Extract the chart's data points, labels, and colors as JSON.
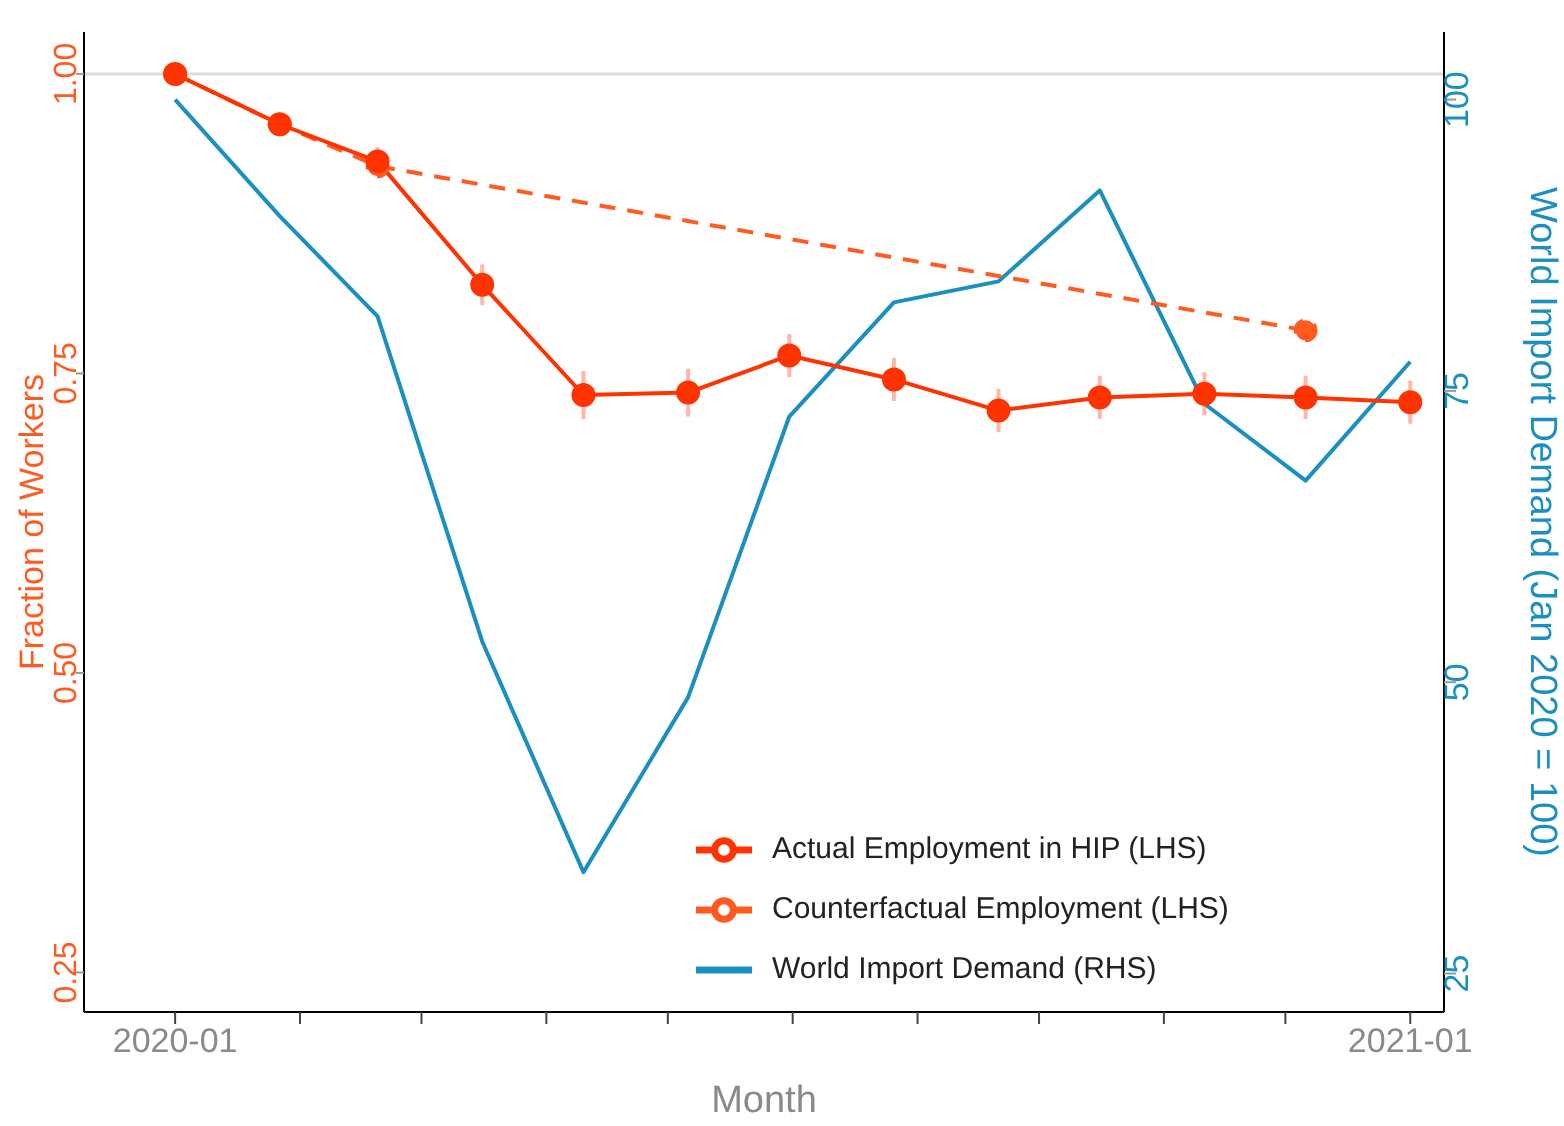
{
  "chart_data": {
    "type": "line",
    "xlabel": "Month",
    "ylabel": "Fraction of Workers",
    "y2label": "World Import Demand (Jan 2020 = 100)",
    "x": [
      "2020-01",
      "2020-02",
      "2020-03",
      "2020-04",
      "2020-05",
      "2020-06",
      "2020-07",
      "2020-08",
      "2020-09",
      "2020-10",
      "2020-11",
      "2020-12",
      "2021-01"
    ],
    "series": [
      {
        "name": "Actual Employment in HIP (LHS)",
        "color": "#ff3300",
        "values": [
          1.0,
          0.958,
          0.927,
          0.824,
          0.732,
          0.734,
          0.765,
          0.745,
          0.719,
          0.73,
          0.733,
          0.73,
          0.726
        ],
        "errors": [
          null,
          0.008,
          0.012,
          0.017,
          0.02,
          0.02,
          0.018,
          0.018,
          0.018,
          0.018,
          0.018,
          0.018,
          0.018
        ]
      },
      {
        "name": "Counterfactual Employment (LHS)",
        "color": "#ff5a1f",
        "line_style": "dashed",
        "x": [
          "2020-01",
          "2020-02",
          "2020-03",
          "2020-12"
        ],
        "values": [
          1.0,
          0.958,
          0.923,
          0.786
        ]
      },
      {
        "name": "World Import Demand (RHS)",
        "color": "#1a8fc0",
        "axis": "y2",
        "marker": "none",
        "values": [
          100,
          90.0,
          81.4,
          53.5,
          33.7,
          48.7,
          72.8,
          82.6,
          84.4,
          92.2,
          73.9,
          67.3,
          77.5
        ]
      }
    ],
    "xlim": [
      "2019-12-05",
      "2021-01-11"
    ],
    "xticks": [
      {
        "value": "2020-01",
        "label": "2020-01"
      },
      {
        "value": "2020-02-07",
        "label": null
      },
      {
        "value": "2020-03-14",
        "label": null
      },
      {
        "value": "2020-04-20",
        "label": null
      },
      {
        "value": "2020-05-26",
        "label": null
      },
      {
        "value": "2020-07-02",
        "label": null
      },
      {
        "value": "2020-08-08",
        "label": null
      },
      {
        "value": "2020-09-13",
        "label": null
      },
      {
        "value": "2020-10-20",
        "label": null
      },
      {
        "value": "2020-11-25",
        "label": null
      },
      {
        "value": "2021-01",
        "label": "2021-01"
      }
    ],
    "ylim": [
      0.217,
      1.035
    ],
    "yticks": [
      {
        "value": 0.25,
        "label": "0.25"
      },
      {
        "value": 0.5,
        "label": "0.50"
      },
      {
        "value": 0.75,
        "label": "0.75"
      },
      {
        "value": 1,
        "label": "1.00"
      }
    ],
    "y2lim": [
      21.7,
      105.8
    ],
    "y2ticks": [
      25,
      50,
      75,
      100
    ],
    "ref_lines": [
      {
        "axis": "y",
        "value": 1,
        "color": "#dddddd"
      }
    ],
    "marker": "circle",
    "line_style": "solid",
    "grid": false,
    "legend": "bottom right"
  }
}
